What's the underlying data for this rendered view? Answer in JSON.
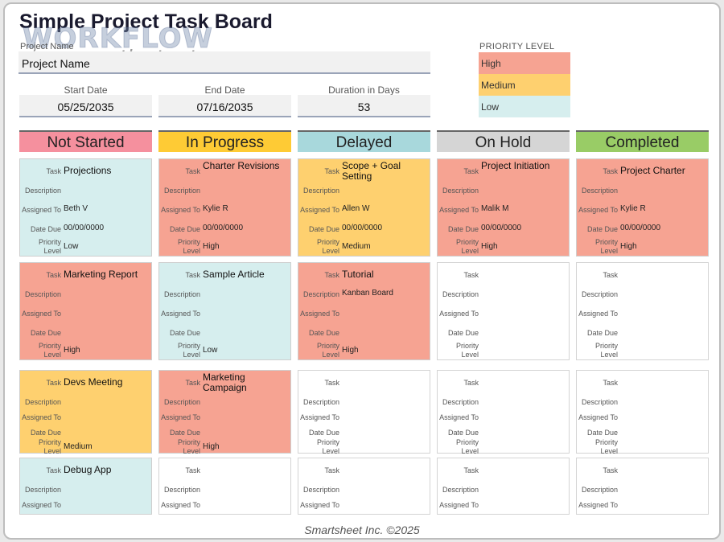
{
  "title": "Simple Project Task Board",
  "watermark": {
    "line1": "WORKFLOW",
    "line2": "tipster.top"
  },
  "project": {
    "label": "Project Name",
    "value": "Project Name"
  },
  "dates": {
    "start": {
      "label": "Start Date",
      "value": "05/25/2035"
    },
    "end": {
      "label": "End Date",
      "value": "07/16/2035"
    },
    "duration": {
      "label": "Duration in Days",
      "value": "53"
    }
  },
  "priority_legend": {
    "title": "PRIORITY LEVEL",
    "items": [
      {
        "label": "High",
        "color": "#f6a392"
      },
      {
        "label": "Medium",
        "color": "#fed06f"
      },
      {
        "label": "Low",
        "color": "#d6eeee"
      }
    ]
  },
  "field_labels": {
    "task": "Task",
    "description": "Description",
    "assigned": "Assigned To",
    "due": "Date Due",
    "priority_1": "Priority",
    "priority_2": "Level"
  },
  "columns": [
    {
      "name": "Not Started",
      "color": "#f5909e"
    },
    {
      "name": "In Progress",
      "color": "#fecb35"
    },
    {
      "name": "Delayed",
      "color": "#a8d8dc"
    },
    {
      "name": "On Hold",
      "color": "#d5d5d5"
    },
    {
      "name": "Completed",
      "color": "#99cc66"
    }
  ],
  "cards": [
    [
      {
        "task": "Projections",
        "description": "",
        "assigned": "Beth V",
        "due": "00/00/0000",
        "priority": "Low",
        "color": "blue"
      },
      {
        "task": "Marketing Report",
        "description": "",
        "assigned": "",
        "due": "",
        "priority": "High",
        "color": "red"
      },
      {
        "task": "Devs Meeting",
        "description": "",
        "assigned": "",
        "due": "",
        "priority": "Medium",
        "color": "yellow"
      },
      {
        "task": "Debug App",
        "description": "",
        "assigned": "",
        "due": "",
        "priority": "",
        "color": "blue"
      }
    ],
    [
      {
        "task": "Charter Revisions",
        "description": "",
        "assigned": "Kylie R",
        "due": "00/00/0000",
        "priority": "High",
        "color": "red"
      },
      {
        "task": "Sample Article",
        "description": "",
        "assigned": "",
        "due": "",
        "priority": "Low",
        "color": "blue"
      },
      {
        "task": "Marketing Campaign",
        "description": "",
        "assigned": "",
        "due": "",
        "priority": "High",
        "color": "red"
      },
      {
        "task": "",
        "description": "",
        "assigned": "",
        "due": "",
        "priority": "",
        "color": "white"
      }
    ],
    [
      {
        "task": "Scope + Goal Setting",
        "description": "",
        "assigned": "Allen W",
        "due": "00/00/0000",
        "priority": "Medium",
        "color": "yellow"
      },
      {
        "task": "Tutorial",
        "description": "Kanban Board",
        "assigned": "",
        "due": "",
        "priority": "High",
        "color": "red"
      },
      {
        "task": "",
        "description": "",
        "assigned": "",
        "due": "",
        "priority": "",
        "color": "white"
      },
      {
        "task": "",
        "description": "",
        "assigned": "",
        "due": "",
        "priority": "",
        "color": "white"
      }
    ],
    [
      {
        "task": "Project Initiation",
        "description": "",
        "assigned": "Malik M",
        "due": "00/00/0000",
        "priority": "High",
        "color": "red"
      },
      {
        "task": "",
        "description": "",
        "assigned": "",
        "due": "",
        "priority": "",
        "color": "white"
      },
      {
        "task": "",
        "description": "",
        "assigned": "",
        "due": "",
        "priority": "",
        "color": "white"
      },
      {
        "task": "",
        "description": "",
        "assigned": "",
        "due": "",
        "priority": "",
        "color": "white"
      }
    ],
    [
      {
        "task": "Project Charter",
        "description": "",
        "assigned": "Kylie R",
        "due": "00/00/0000",
        "priority": "High",
        "color": "red"
      },
      {
        "task": "",
        "description": "",
        "assigned": "",
        "due": "",
        "priority": "",
        "color": "white"
      },
      {
        "task": "",
        "description": "",
        "assigned": "",
        "due": "",
        "priority": "",
        "color": "white"
      },
      {
        "task": "",
        "description": "",
        "assigned": "",
        "due": "",
        "priority": "",
        "color": "white"
      }
    ]
  ],
  "footer": "Smartsheet Inc. ©2025"
}
